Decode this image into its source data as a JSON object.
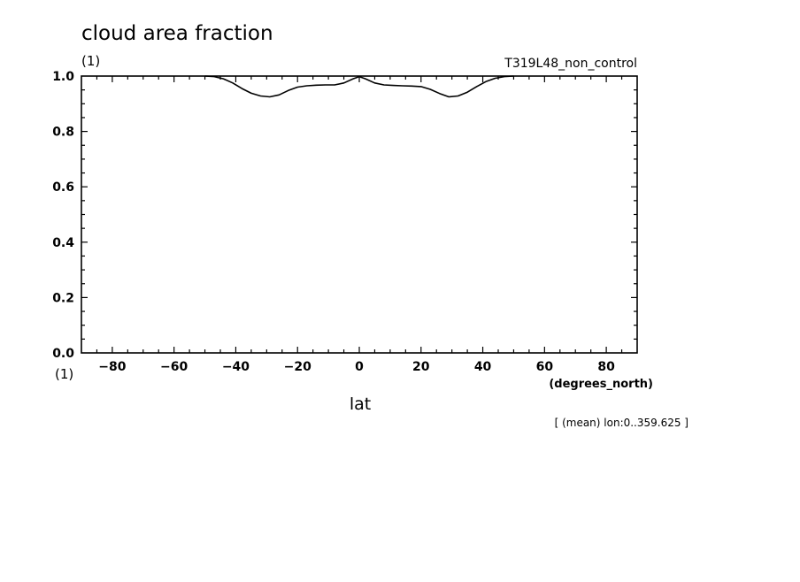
{
  "chart_data": {
    "type": "line",
    "title": "cloud area fraction",
    "ylabel_units": "(1)",
    "x_units_left": "(1)",
    "run_label": "T319L48_non_control",
    "xlabel": "lat",
    "xunits": "(degrees_north)",
    "annotation": "[ (mean) lon:0..359.625 ]",
    "xlim": [
      -90,
      90
    ],
    "ylim": [
      0.0,
      1.0
    ],
    "x_ticks": [
      -80,
      -60,
      -40,
      -20,
      0,
      20,
      40,
      60,
      80
    ],
    "x_tick_labels": [
      "-80",
      "-60",
      "-40",
      "-20",
      "0",
      "20",
      "40",
      "60",
      "80"
    ],
    "y_ticks": [
      0.0,
      0.2,
      0.4,
      0.6,
      0.8,
      1.0
    ],
    "y_tick_labels": [
      "0.0",
      "0.2",
      "0.4",
      "0.6",
      "0.8",
      "1.0"
    ],
    "grid": false,
    "series": [
      {
        "x": [
          -50,
          -47,
          -44,
          -41,
          -38,
          -35,
          -32,
          -29,
          -26,
          -23,
          -20,
          -17,
          -14,
          -11,
          -8,
          -5,
          -2,
          0,
          2,
          5,
          8,
          11,
          14,
          17,
          20,
          23,
          26,
          29,
          32,
          35,
          38,
          41,
          44,
          47,
          50
        ],
        "y": [
          1.0,
          0.998,
          0.99,
          0.975,
          0.955,
          0.938,
          0.928,
          0.925,
          0.932,
          0.948,
          0.96,
          0.965,
          0.967,
          0.968,
          0.968,
          0.975,
          0.99,
          0.998,
          0.99,
          0.975,
          0.968,
          0.966,
          0.965,
          0.964,
          0.962,
          0.952,
          0.937,
          0.925,
          0.928,
          0.942,
          0.962,
          0.98,
          0.992,
          0.998,
          1.0
        ]
      }
    ]
  },
  "colors": {
    "line": "#000000",
    "axes": "#000000",
    "background": "#ffffff"
  }
}
